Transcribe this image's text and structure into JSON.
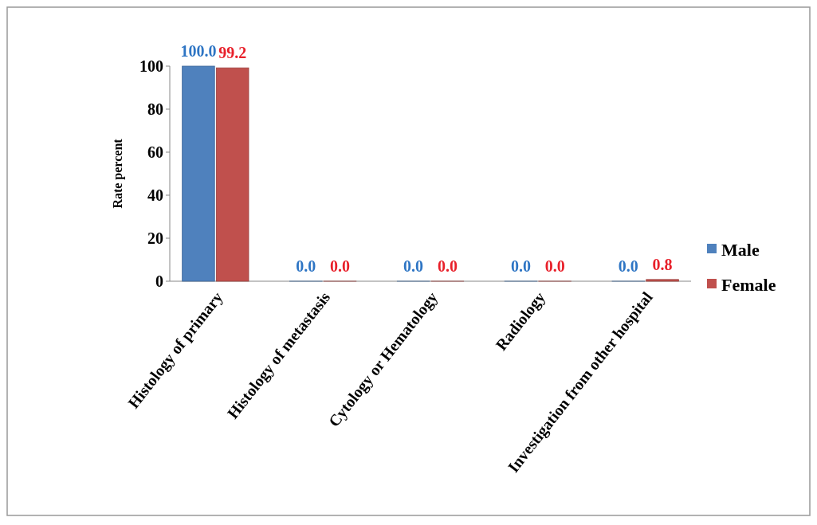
{
  "chart_data": {
    "type": "bar",
    "ylabel": "Rate percent",
    "categories": [
      "Histology of primary",
      "Histology of metastasis",
      "Cytology or Hematology",
      "Radiology",
      "Investigation from other hospital"
    ],
    "series": [
      {
        "name": "Male",
        "color": "#4f81bd",
        "values": [
          100,
          0,
          0,
          0,
          0
        ],
        "value_labels": [
          "100.0",
          "0.0",
          "0.0",
          "0.0",
          "0.0"
        ]
      },
      {
        "name": "Female",
        "color": "#c0504d",
        "values": [
          99.2,
          0,
          0,
          0,
          0.8
        ],
        "value_labels": [
          "99.2",
          "0.0",
          "0.0",
          "0.0",
          "0.8"
        ]
      }
    ],
    "ylim": [
      0,
      100
    ],
    "yticks": [
      0,
      20,
      40,
      60,
      80,
      100
    ],
    "legend": "right"
  }
}
